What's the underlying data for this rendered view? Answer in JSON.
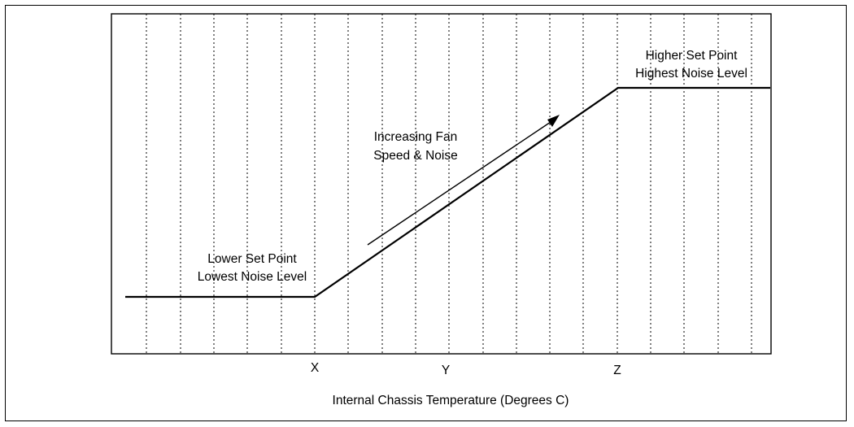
{
  "chart_data": {
    "type": "line",
    "xlabel": "Internal Chassis Temperature (Degrees C)",
    "ylabel": "",
    "x_ticks": [
      "X",
      "Y",
      "Z"
    ],
    "grid": "vertical dotted",
    "series": [
      {
        "points": [
          {
            "x": "start",
            "level": "low"
          },
          {
            "x": "X",
            "level": "low"
          },
          {
            "x": "Z",
            "level": "high"
          },
          {
            "x": "end",
            "level": "high"
          }
        ]
      }
    ],
    "annotations": {
      "lower": {
        "line1": "Lower Set Point",
        "line2": "Lowest Noise Level"
      },
      "upper": {
        "line1": "Higher Set Point",
        "line2": "Highest Noise Level"
      },
      "middle": {
        "line1": "Increasing Fan",
        "line2": "Speed & Noise"
      }
    }
  }
}
